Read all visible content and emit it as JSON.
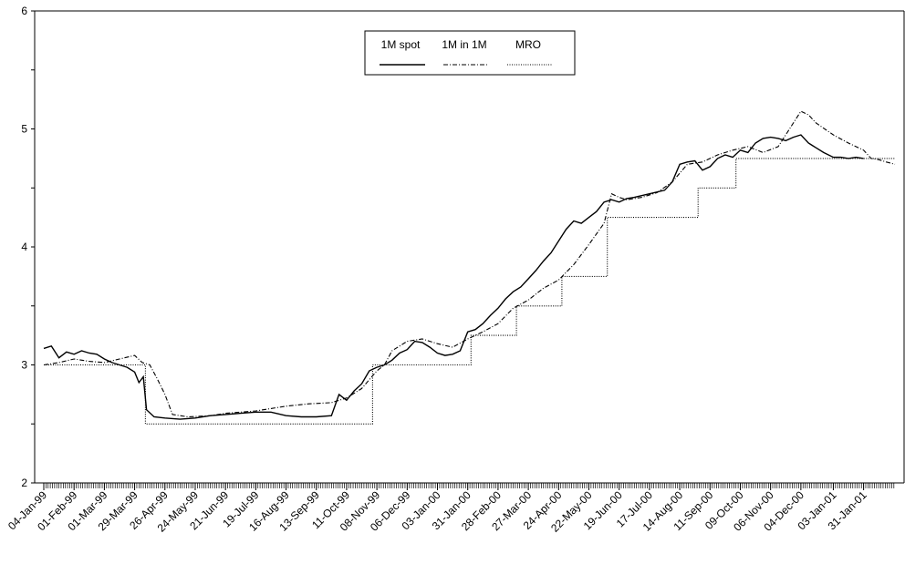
{
  "chart_data": {
    "type": "line",
    "title": "",
    "xlabel": "",
    "ylabel": "",
    "ylim": [
      2,
      6
    ],
    "yticks": [
      2,
      3,
      4,
      5,
      6
    ],
    "xlim": [
      "1999-01-04",
      "2001-03-01"
    ],
    "xtick_labels": [
      "04-Jan-99",
      "01-Feb-99",
      "01-Mar-99",
      "29-Mar-99",
      "26-Apr-99",
      "24-May-99",
      "21-Jun-99",
      "19-Jul-99",
      "16-Aug-99",
      "13-Sep-99",
      "11-Oct-99",
      "08-Nov-99",
      "06-Dec-99",
      "03-Jan-00",
      "31-Jan-00",
      "28-Feb-00",
      "27-Mar-00",
      "24-Apr-00",
      "22-May-00",
      "19-Jun-00",
      "17-Jul-00",
      "14-Aug-00",
      "11-Sep-00",
      "09-Oct-00",
      "06-Nov-00",
      "04-Dec-00",
      "03-Jan-01",
      "31-Jan-01"
    ],
    "xtick_dates": [
      "1999-01-04",
      "1999-02-01",
      "1999-03-01",
      "1999-03-29",
      "1999-04-26",
      "1999-05-24",
      "1999-06-21",
      "1999-07-19",
      "1999-08-16",
      "1999-09-13",
      "1999-10-11",
      "1999-11-08",
      "1999-12-06",
      "2000-01-03",
      "2000-01-31",
      "2000-02-28",
      "2000-03-27",
      "2000-04-24",
      "2000-05-22",
      "2000-06-19",
      "2000-07-17",
      "2000-08-14",
      "2000-09-11",
      "2000-10-09",
      "2000-11-06",
      "2000-12-04",
      "2001-01-03",
      "2001-01-31"
    ],
    "grid": false,
    "legend_position": "top-center",
    "series": [
      {
        "name": "1M spot",
        "style": "solid",
        "color": "#000000",
        "points": [
          [
            "1999-01-04",
            3.14
          ],
          [
            "1999-01-11",
            3.16
          ],
          [
            "1999-01-18",
            3.06
          ],
          [
            "1999-01-25",
            3.11
          ],
          [
            "1999-02-01",
            3.09
          ],
          [
            "1999-02-08",
            3.12
          ],
          [
            "1999-02-15",
            3.1
          ],
          [
            "1999-02-22",
            3.09
          ],
          [
            "1999-03-01",
            3.05
          ],
          [
            "1999-03-08",
            3.02
          ],
          [
            "1999-03-15",
            3.0
          ],
          [
            "1999-03-22",
            2.98
          ],
          [
            "1999-03-29",
            2.94
          ],
          [
            "1999-04-02",
            2.85
          ],
          [
            "1999-04-06",
            2.9
          ],
          [
            "1999-04-09",
            2.62
          ],
          [
            "1999-04-16",
            2.56
          ],
          [
            "1999-04-26",
            2.55
          ],
          [
            "1999-05-10",
            2.54
          ],
          [
            "1999-05-24",
            2.55
          ],
          [
            "1999-06-07",
            2.57
          ],
          [
            "1999-06-21",
            2.58
          ],
          [
            "1999-07-05",
            2.59
          ],
          [
            "1999-07-19",
            2.6
          ],
          [
            "1999-08-02",
            2.6
          ],
          [
            "1999-08-16",
            2.57
          ],
          [
            "1999-08-30",
            2.56
          ],
          [
            "1999-09-13",
            2.56
          ],
          [
            "1999-09-27",
            2.57
          ],
          [
            "1999-10-04",
            2.75
          ],
          [
            "1999-10-11",
            2.7
          ],
          [
            "1999-10-18",
            2.78
          ],
          [
            "1999-10-25",
            2.84
          ],
          [
            "1999-11-01",
            2.95
          ],
          [
            "1999-11-08",
            2.98
          ],
          [
            "1999-11-15",
            3.0
          ],
          [
            "1999-11-22",
            3.04
          ],
          [
            "1999-11-29",
            3.1
          ],
          [
            "1999-12-06",
            3.13
          ],
          [
            "1999-12-13",
            3.2
          ],
          [
            "1999-12-20",
            3.19
          ],
          [
            "1999-12-27",
            3.15
          ],
          [
            "2000-01-03",
            3.1
          ],
          [
            "2000-01-10",
            3.08
          ],
          [
            "2000-01-17",
            3.09
          ],
          [
            "2000-01-24",
            3.12
          ],
          [
            "2000-01-31",
            3.28
          ],
          [
            "2000-02-07",
            3.3
          ],
          [
            "2000-02-14",
            3.35
          ],
          [
            "2000-02-21",
            3.42
          ],
          [
            "2000-02-28",
            3.48
          ],
          [
            "2000-03-06",
            3.56
          ],
          [
            "2000-03-13",
            3.62
          ],
          [
            "2000-03-20",
            3.66
          ],
          [
            "2000-03-27",
            3.73
          ],
          [
            "2000-04-03",
            3.8
          ],
          [
            "2000-04-10",
            3.88
          ],
          [
            "2000-04-17",
            3.95
          ],
          [
            "2000-04-24",
            4.05
          ],
          [
            "2000-05-01",
            4.15
          ],
          [
            "2000-05-08",
            4.22
          ],
          [
            "2000-05-15",
            4.2
          ],
          [
            "2000-05-22",
            4.25
          ],
          [
            "2000-05-29",
            4.3
          ],
          [
            "2000-06-05",
            4.38
          ],
          [
            "2000-06-12",
            4.4
          ],
          [
            "2000-06-19",
            4.38
          ],
          [
            "2000-06-26",
            4.41
          ],
          [
            "2000-07-03",
            4.42
          ],
          [
            "2000-07-17",
            4.45
          ],
          [
            "2000-07-31",
            4.48
          ],
          [
            "2000-08-07",
            4.55
          ],
          [
            "2000-08-14",
            4.7
          ],
          [
            "2000-08-21",
            4.72
          ],
          [
            "2000-08-28",
            4.73
          ],
          [
            "2000-09-04",
            4.65
          ],
          [
            "2000-09-11",
            4.68
          ],
          [
            "2000-09-18",
            4.75
          ],
          [
            "2000-09-25",
            4.78
          ],
          [
            "2000-10-02",
            4.76
          ],
          [
            "2000-10-09",
            4.82
          ],
          [
            "2000-10-16",
            4.8
          ],
          [
            "2000-10-23",
            4.88
          ],
          [
            "2000-10-30",
            4.92
          ],
          [
            "2000-11-06",
            4.93
          ],
          [
            "2000-11-13",
            4.92
          ],
          [
            "2000-11-20",
            4.9
          ],
          [
            "2000-11-27",
            4.93
          ],
          [
            "2000-12-04",
            4.95
          ],
          [
            "2000-12-11",
            4.88
          ],
          [
            "2000-12-18",
            4.84
          ],
          [
            "2000-12-25",
            4.8
          ],
          [
            "2001-01-03",
            4.76
          ],
          [
            "2001-01-10",
            4.76
          ],
          [
            "2001-01-17",
            4.75
          ],
          [
            "2001-01-24",
            4.76
          ],
          [
            "2001-01-31",
            4.75
          ]
        ]
      },
      {
        "name": "1M in 1M",
        "style": "dashdot",
        "color": "#000000",
        "points": [
          [
            "1999-01-04",
            3.0
          ],
          [
            "1999-01-18",
            3.02
          ],
          [
            "1999-02-01",
            3.05
          ],
          [
            "1999-02-15",
            3.03
          ],
          [
            "1999-03-01",
            3.02
          ],
          [
            "1999-03-15",
            3.05
          ],
          [
            "1999-03-29",
            3.08
          ],
          [
            "1999-04-05",
            3.02
          ],
          [
            "1999-04-12",
            3.0
          ],
          [
            "1999-04-19",
            2.88
          ],
          [
            "1999-04-26",
            2.75
          ],
          [
            "1999-05-03",
            2.58
          ],
          [
            "1999-05-17",
            2.56
          ],
          [
            "1999-06-07",
            2.57
          ],
          [
            "1999-06-21",
            2.59
          ],
          [
            "1999-07-19",
            2.61
          ],
          [
            "1999-08-16",
            2.65
          ],
          [
            "1999-09-06",
            2.67
          ],
          [
            "1999-09-27",
            2.68
          ],
          [
            "1999-10-11",
            2.72
          ],
          [
            "1999-10-25",
            2.8
          ],
          [
            "1999-11-08",
            2.95
          ],
          [
            "1999-11-15",
            3.0
          ],
          [
            "1999-11-22",
            3.12
          ],
          [
            "1999-12-06",
            3.2
          ],
          [
            "1999-12-20",
            3.22
          ],
          [
            "2000-01-03",
            3.18
          ],
          [
            "2000-01-17",
            3.15
          ],
          [
            "2000-01-31",
            3.22
          ],
          [
            "2000-02-14",
            3.28
          ],
          [
            "2000-02-28",
            3.35
          ],
          [
            "2000-03-13",
            3.48
          ],
          [
            "2000-03-27",
            3.55
          ],
          [
            "2000-04-10",
            3.65
          ],
          [
            "2000-04-24",
            3.72
          ],
          [
            "2000-05-08",
            3.85
          ],
          [
            "2000-05-22",
            4.02
          ],
          [
            "2000-06-05",
            4.2
          ],
          [
            "2000-06-12",
            4.45
          ],
          [
            "2000-06-19",
            4.42
          ],
          [
            "2000-06-26",
            4.4
          ],
          [
            "2000-07-10",
            4.42
          ],
          [
            "2000-07-24",
            4.46
          ],
          [
            "2000-08-07",
            4.55
          ],
          [
            "2000-08-21",
            4.7
          ],
          [
            "2000-09-04",
            4.72
          ],
          [
            "2000-09-18",
            4.78
          ],
          [
            "2000-10-02",
            4.82
          ],
          [
            "2000-10-16",
            4.85
          ],
          [
            "2000-10-30",
            4.8
          ],
          [
            "2000-11-13",
            4.85
          ],
          [
            "2000-11-27",
            5.05
          ],
          [
            "2000-12-04",
            5.15
          ],
          [
            "2000-12-11",
            5.12
          ],
          [
            "2000-12-18",
            5.05
          ],
          [
            "2001-01-03",
            4.95
          ],
          [
            "2001-01-17",
            4.88
          ],
          [
            "2001-01-31",
            4.82
          ],
          [
            "2001-02-07",
            4.75
          ],
          [
            "2001-02-14",
            4.74
          ],
          [
            "2001-02-21",
            4.72
          ],
          [
            "2001-03-01",
            4.7
          ]
        ]
      },
      {
        "name": "MRO",
        "style": "dotted",
        "color": "#000000",
        "points": [
          [
            "1999-01-04",
            3.0
          ],
          [
            "1999-04-08",
            3.0
          ],
          [
            "1999-04-08",
            2.5
          ],
          [
            "1999-11-04",
            2.5
          ],
          [
            "1999-11-04",
            3.0
          ],
          [
            "2000-02-03",
            3.0
          ],
          [
            "2000-02-03",
            3.25
          ],
          [
            "2000-03-16",
            3.25
          ],
          [
            "2000-03-16",
            3.5
          ],
          [
            "2000-04-27",
            3.5
          ],
          [
            "2000-04-27",
            3.75
          ],
          [
            "2000-06-08",
            3.75
          ],
          [
            "2000-06-08",
            4.25
          ],
          [
            "2000-08-31",
            4.25
          ],
          [
            "2000-08-31",
            4.5
          ],
          [
            "2000-10-05",
            4.5
          ],
          [
            "2000-10-05",
            4.75
          ],
          [
            "2001-03-01",
            4.75
          ]
        ]
      }
    ]
  }
}
